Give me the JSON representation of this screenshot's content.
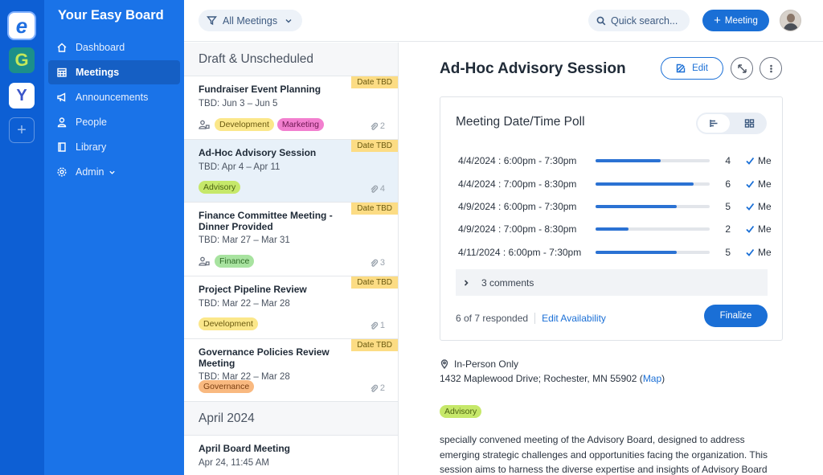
{
  "apps": [
    {
      "name": "easy-board",
      "glyph": "e"
    },
    {
      "name": "app-g",
      "glyph": "G"
    },
    {
      "name": "app-y",
      "glyph": "Y"
    },
    {
      "name": "add-app",
      "glyph": "+"
    }
  ],
  "sidebar": {
    "brand": "Your Easy Board",
    "items": [
      {
        "label": "Dashboard",
        "icon": "home-icon"
      },
      {
        "label": "Meetings",
        "icon": "calendar-icon",
        "active": true
      },
      {
        "label": "Announcements",
        "icon": "megaphone-icon"
      },
      {
        "label": "People",
        "icon": "person-icon"
      },
      {
        "label": "Library",
        "icon": "book-icon"
      },
      {
        "label": "Admin",
        "icon": "gear-icon",
        "has_dropdown": true
      }
    ]
  },
  "topbar": {
    "filter_label": "All Meetings",
    "search_placeholder": "Quick search...",
    "new_meeting_label": "Meeting"
  },
  "list": {
    "group1": "Draft & Unscheduled",
    "group2": "April 2024",
    "meetings": [
      {
        "title": "Fundraiser Event Planning",
        "date": "TBD: Jun 3 – Jun 5",
        "badge": "Date TBD",
        "tags": [
          "Development",
          "Marketing"
        ],
        "attachments": "2"
      },
      {
        "title": "Ad-Hoc Advisory Session",
        "date": "TBD: Apr 4 – Apr 11",
        "badge": "Date TBD",
        "tags": [
          "Advisory"
        ],
        "attachments": "4"
      },
      {
        "title": "Finance Committee Meeting - Dinner Provided",
        "date": "TBD: Mar 27 – Mar 31",
        "badge": "Date TBD",
        "tags": [
          "Finance"
        ],
        "attachments": "3"
      },
      {
        "title": "Project Pipeline Review",
        "date": "TBD: Mar 22 – Mar 28",
        "badge": "Date TBD",
        "tags": [
          "Development"
        ],
        "attachments": "1"
      },
      {
        "title": "Governance Policies Review Meeting",
        "date": "TBD: Mar 22 – Mar 28",
        "badge": "Date TBD",
        "tags": [
          "Governance"
        ],
        "attachments": "2"
      },
      {
        "title": "April Board Meeting",
        "date": "Apr 24, 11:45 AM"
      }
    ]
  },
  "detail": {
    "title": "Ad-Hoc Advisory Session",
    "edit_label": "Edit",
    "poll": {
      "title": "Meeting Date/Time Poll",
      "total": 7,
      "options": [
        {
          "label": "4/4/2024 : 6:00pm - 7:30pm",
          "count": 4,
          "me": "Me"
        },
        {
          "label": "4/4/2024 : 7:00pm - 8:30pm",
          "count": 6,
          "me": "Me"
        },
        {
          "label": "4/9/2024 : 6:00pm - 7:30pm",
          "count": 5,
          "me": "Me"
        },
        {
          "label": "4/9/2024 : 7:00pm - 8:30pm",
          "count": 2,
          "me": "Me"
        },
        {
          "label": "4/11/2024 : 6:00pm - 7:30pm",
          "count": 5,
          "me": "Me"
        }
      ],
      "comments_label": "3 comments",
      "responded": "6 of 7 responded",
      "edit_availability": "Edit Availability",
      "finalize_label": "Finalize"
    },
    "location_type": "In-Person Only",
    "address": "1432 Maplewood Drive; Rochester, MN 55902",
    "map_label": "Map",
    "tag": "Advisory",
    "description": "specially convened meeting of the Advisory Board, designed to address emerging strategic challenges and opportunities facing the organization. This session aims to harness the diverse expertise and insights of Advisory Board members to"
  },
  "colors": {
    "rail": "#0d5fd4",
    "sidebar": "#1a73e8",
    "accent": "#1a6fd6",
    "badge": "#fcdc84"
  }
}
